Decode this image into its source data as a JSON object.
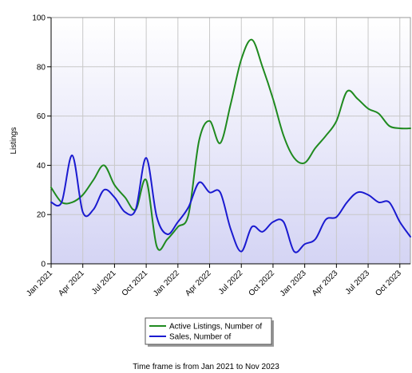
{
  "chart_data": {
    "type": "line",
    "title": "",
    "xlabel": "",
    "ylabel": "Listings",
    "ylim": [
      0,
      100
    ],
    "y_ticks": [
      0,
      20,
      40,
      60,
      80,
      100
    ],
    "x_range": [
      "2021-01",
      "2023-11"
    ],
    "x_ticks": [
      {
        "date": "2021-01",
        "label": "Jan 2021"
      },
      {
        "date": "2021-04",
        "label": "Apr 2021"
      },
      {
        "date": "2021-07",
        "label": "Jul 2021"
      },
      {
        "date": "2021-10",
        "label": "Oct 2021"
      },
      {
        "date": "2022-01",
        "label": "Jan 2022"
      },
      {
        "date": "2022-04",
        "label": "Apr 2022"
      },
      {
        "date": "2022-07",
        "label": "Jul 2022"
      },
      {
        "date": "2022-10",
        "label": "Oct 2022"
      },
      {
        "date": "2023-01",
        "label": "Jan 2023"
      },
      {
        "date": "2023-04",
        "label": "Apr 2023"
      },
      {
        "date": "2023-07",
        "label": "Jul 2023"
      },
      {
        "date": "2023-10",
        "label": "Oct 2023"
      }
    ],
    "grid": true,
    "legend_position": "bottom",
    "series": [
      {
        "name": "Active Listings, Number of",
        "color": "#1f8a1f",
        "points": [
          {
            "date": "2021-01",
            "value": 31
          },
          {
            "date": "2021-02",
            "value": 25
          },
          {
            "date": "2021-03",
            "value": 25
          },
          {
            "date": "2021-04",
            "value": 28
          },
          {
            "date": "2021-05",
            "value": 34
          },
          {
            "date": "2021-06",
            "value": 40
          },
          {
            "date": "2021-07",
            "value": 32
          },
          {
            "date": "2021-08",
            "value": 27
          },
          {
            "date": "2021-09",
            "value": 22
          },
          {
            "date": "2021-10",
            "value": 34
          },
          {
            "date": "2021-11",
            "value": 7
          },
          {
            "date": "2021-12",
            "value": 10
          },
          {
            "date": "2022-01",
            "value": 15
          },
          {
            "date": "2022-02",
            "value": 20
          },
          {
            "date": "2022-03",
            "value": 50
          },
          {
            "date": "2022-04",
            "value": 58
          },
          {
            "date": "2022-05",
            "value": 49
          },
          {
            "date": "2022-06",
            "value": 65
          },
          {
            "date": "2022-07",
            "value": 83
          },
          {
            "date": "2022-08",
            "value": 91
          },
          {
            "date": "2022-09",
            "value": 80
          },
          {
            "date": "2022-10",
            "value": 67
          },
          {
            "date": "2022-11",
            "value": 52
          },
          {
            "date": "2022-12",
            "value": 43
          },
          {
            "date": "2023-01",
            "value": 41
          },
          {
            "date": "2023-02",
            "value": 47
          },
          {
            "date": "2023-03",
            "value": 52
          },
          {
            "date": "2023-04",
            "value": 58
          },
          {
            "date": "2023-05",
            "value": 70
          },
          {
            "date": "2023-06",
            "value": 67
          },
          {
            "date": "2023-07",
            "value": 63
          },
          {
            "date": "2023-08",
            "value": 61
          },
          {
            "date": "2023-09",
            "value": 56
          },
          {
            "date": "2023-10",
            "value": 55
          },
          {
            "date": "2023-11",
            "value": 55
          }
        ]
      },
      {
        "name": "Sales, Number of",
        "color": "#1a1ad0",
        "points": [
          {
            "date": "2021-01",
            "value": 25
          },
          {
            "date": "2021-02",
            "value": 25
          },
          {
            "date": "2021-03",
            "value": 44
          },
          {
            "date": "2021-04",
            "value": 21
          },
          {
            "date": "2021-05",
            "value": 22
          },
          {
            "date": "2021-06",
            "value": 30
          },
          {
            "date": "2021-07",
            "value": 27
          },
          {
            "date": "2021-08",
            "value": 21
          },
          {
            "date": "2021-09",
            "value": 22
          },
          {
            "date": "2021-10",
            "value": 43
          },
          {
            "date": "2021-11",
            "value": 19
          },
          {
            "date": "2021-12",
            "value": 12
          },
          {
            "date": "2022-01",
            "value": 17
          },
          {
            "date": "2022-02",
            "value": 23
          },
          {
            "date": "2022-03",
            "value": 33
          },
          {
            "date": "2022-04",
            "value": 29
          },
          {
            "date": "2022-05",
            "value": 29
          },
          {
            "date": "2022-06",
            "value": 14
          },
          {
            "date": "2022-07",
            "value": 5
          },
          {
            "date": "2022-08",
            "value": 15
          },
          {
            "date": "2022-09",
            "value": 13
          },
          {
            "date": "2022-10",
            "value": 17
          },
          {
            "date": "2022-11",
            "value": 17
          },
          {
            "date": "2022-12",
            "value": 5
          },
          {
            "date": "2023-01",
            "value": 8
          },
          {
            "date": "2023-02",
            "value": 10
          },
          {
            "date": "2023-03",
            "value": 18
          },
          {
            "date": "2023-04",
            "value": 19
          },
          {
            "date": "2023-05",
            "value": 25
          },
          {
            "date": "2023-06",
            "value": 29
          },
          {
            "date": "2023-07",
            "value": 28
          },
          {
            "date": "2023-08",
            "value": 25
          },
          {
            "date": "2023-09",
            "value": 25
          },
          {
            "date": "2023-10",
            "value": 17
          },
          {
            "date": "2023-11",
            "value": 11
          }
        ]
      }
    ]
  },
  "caption": "Time frame is from Jan 2021 to Nov 2023"
}
